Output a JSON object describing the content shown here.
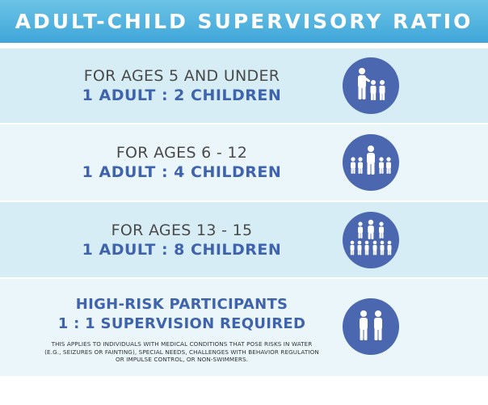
{
  "header": {
    "title": "ADULT-CHILD SUPERVISORY RATIO"
  },
  "rows": [
    {
      "age": "FOR AGES 5 AND UNDER",
      "ratio": "1 ADULT : 2 CHILDREN",
      "icon": "adult-with-two-children-icon"
    },
    {
      "age": "FOR AGES 6 - 12",
      "ratio": "1 ADULT : 4 CHILDREN",
      "icon": "adult-with-four-children-icon"
    },
    {
      "age": "FOR AGES 13 - 15",
      "ratio": "1 ADULT : 8 CHILDREN",
      "icon": "adult-with-eight-children-icon"
    }
  ],
  "high_risk": {
    "title": "HIGH-RISK PARTICIPANTS",
    "subtitle": "1 : 1 SUPERVISION REQUIRED",
    "note": "THIS APPLIES TO INDIVIDUALS WITH MEDICAL CONDITIONS THAT POSE RISKS IN WATER (E.G., SEIZURES OR FAINTING), SPECIAL NEEDS, CHALLENGES WITH BEHAVIOR REGULATION OR IMPULSE CONTROL, OR NON-SWIMMERS.",
    "icon": "two-people-icon"
  },
  "colors": {
    "header": "#3fa6d9",
    "ratio_text": "#3f64ad",
    "icon_circle": "#4a67b0",
    "row_dark": "#d7edf6",
    "row_light": "#eaf6fa"
  }
}
